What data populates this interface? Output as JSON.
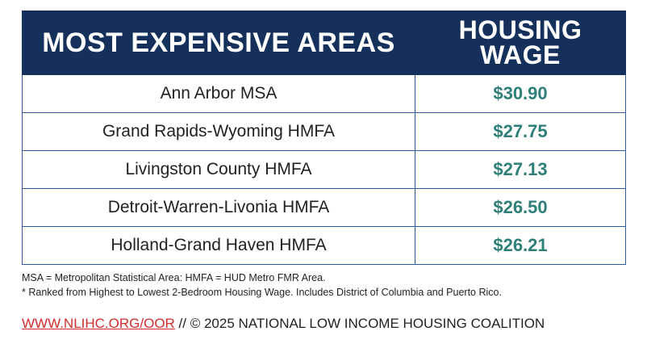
{
  "table": {
    "header": {
      "col1": "MOST EXPENSIVE AREAS",
      "col2_line1": "HOUSING",
      "col2_line2": "WAGE"
    },
    "rows": [
      {
        "area": "Ann Arbor MSA",
        "wage": "$30.90"
      },
      {
        "area": "Grand Rapids-Wyoming HMFA",
        "wage": "$27.75"
      },
      {
        "area": "Livingston County HMFA",
        "wage": "$27.13"
      },
      {
        "area": "Detroit-Warren-Livonia HMFA",
        "wage": "$26.50"
      },
      {
        "area": "Holland-Grand Haven HMFA",
        "wage": "$26.21"
      }
    ]
  },
  "notes": {
    "line1": "MSA = Metropolitan Statistical Area: HMFA = HUD Metro FMR Area.",
    "line2": "* Ranked from Highest to Lowest 2-Bedroom Housing Wage. Includes District of Columbia and Puerto Rico."
  },
  "footer": {
    "link": "WWW.NLIHC.ORG/OOR",
    "text": " // © 2025 NATIONAL LOW INCOME HOUSING COALITION"
  },
  "colors": {
    "header_bg": "#15305a",
    "value_text": "#2d7f78",
    "border": "#2f5aa0",
    "link": "#d12d2f"
  }
}
